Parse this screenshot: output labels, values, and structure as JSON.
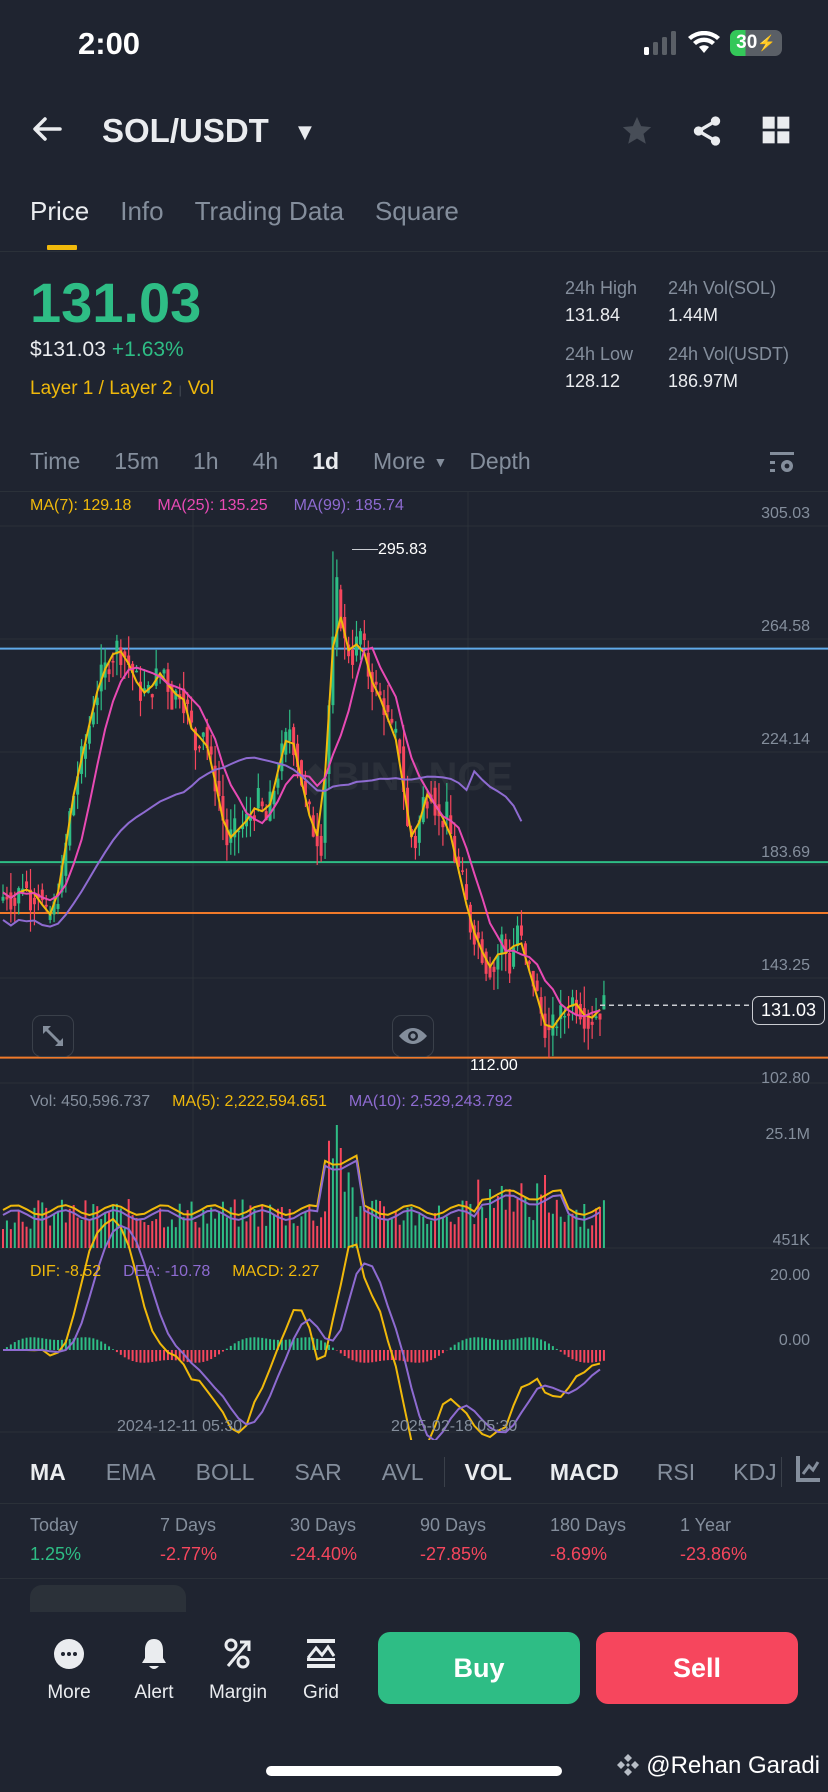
{
  "status_bar": {
    "time": "2:00",
    "battery": "30"
  },
  "header": {
    "pair": "SOL/USDT"
  },
  "tabs": [
    {
      "label": "Price",
      "active": true
    },
    {
      "label": "Info",
      "active": false
    },
    {
      "label": "Trading Data",
      "active": false
    },
    {
      "label": "Square",
      "active": false
    }
  ],
  "ticker": {
    "last_price": "131.03",
    "usd_price": "$131.03",
    "change_pct": "+1.63%",
    "tag1": "Layer 1 / Layer 2",
    "tag2": "Vol",
    "high_label": "24h High",
    "high_value": "131.84",
    "low_label": "24h Low",
    "low_value": "128.12",
    "vol_base_label": "24h Vol(SOL)",
    "vol_base_value": "1.44M",
    "vol_quote_label": "24h Vol(USDT)",
    "vol_quote_value": "186.97M"
  },
  "intervals": {
    "items": [
      "Time",
      "15m",
      "1h",
      "4h",
      "1d",
      "More",
      "Depth"
    ],
    "active": "1d"
  },
  "main_legend": {
    "ma7": "MA(7): 129.18",
    "ma25": "MA(25): 135.25",
    "ma99": "MA(99): 185.74"
  },
  "volume_legend": {
    "vol": "Vol: 450,596.737",
    "ma5": "MA(5): 2,222,594.651",
    "ma10": "MA(10): 2,529,243.792"
  },
  "macd_legend": {
    "dif": "DIF: -8.52",
    "dea": "DEA: -10.78",
    "macd": "MACD: 2.27"
  },
  "indicators": {
    "main": [
      "MA",
      "EMA",
      "BOLL",
      "SAR",
      "AVL"
    ],
    "sub": [
      "VOL",
      "MACD",
      "RSI",
      "KDJ"
    ],
    "active": [
      "MA",
      "VOL",
      "MACD"
    ]
  },
  "performance": [
    {
      "label": "Today",
      "value": "1.25%",
      "dir": "up"
    },
    {
      "label": "7 Days",
      "value": "-2.77%",
      "dir": "down"
    },
    {
      "label": "30 Days",
      "value": "-24.40%",
      "dir": "down"
    },
    {
      "label": "90 Days",
      "value": "-27.85%",
      "dir": "down"
    },
    {
      "label": "180 Days",
      "value": "-8.69%",
      "dir": "down"
    },
    {
      "label": "1 Year",
      "value": "-23.86%",
      "dir": "down"
    }
  ],
  "bottom_bar": {
    "items": [
      {
        "label": "More",
        "icon": "more-icon"
      },
      {
        "label": "Alert",
        "icon": "bell-icon"
      },
      {
        "label": "Margin",
        "icon": "percent-icon"
      },
      {
        "label": "Grid",
        "icon": "grid-bot-icon"
      }
    ],
    "buy": "Buy",
    "sell": "Sell"
  },
  "watermark": "@Rehan Garadi",
  "colors": {
    "bg": "#1f2430",
    "up": "#2ebd85",
    "down": "#f6465d",
    "accent": "#f0b90b",
    "ma7": "#f0b90b",
    "ma25": "#e84ab4",
    "ma99": "#8e6bd1",
    "line_blue": "#5fa8e8",
    "line_green": "#2ebd85",
    "line_orange": "#f07a2a"
  },
  "chart_data": {
    "type": "candlestick",
    "interval": "1d",
    "y_axis_ticks": [
      "305.03",
      "264.58",
      "224.14",
      "183.69",
      "143.25",
      "102.80"
    ],
    "high_marker": "295.83",
    "low_marker": "112.00",
    "current_price": "131.03",
    "x_axis_labels": [
      "2024-12-11 05:30",
      "2025-02-18 05:30"
    ],
    "horizontal_lines": [
      {
        "color": "blue",
        "price": 260.5
      },
      {
        "color": "green",
        "price": 183.0
      },
      {
        "color": "orange",
        "price": 164.5
      },
      {
        "color": "orange",
        "price": 112.0
      }
    ],
    "volume_axis": [
      "25.1M",
      "451K"
    ],
    "macd_axis": [
      "20.00",
      "0.00"
    ],
    "close_path": [
      172,
      168,
      176,
      170,
      173,
      162,
      166,
      178,
      200,
      215,
      226,
      240,
      250,
      256,
      261,
      258,
      252,
      245,
      244,
      250,
      253,
      242,
      246,
      238,
      225,
      232,
      218,
      207,
      190,
      194,
      196,
      200,
      205,
      198,
      210,
      222,
      232,
      220,
      205,
      195,
      190,
      240,
      282,
      262,
      258,
      266,
      252,
      245,
      240,
      230,
      225,
      195,
      190,
      205,
      210,
      198,
      200,
      185,
      175,
      160,
      155,
      146,
      144,
      155,
      145,
      160,
      147,
      140,
      128,
      120,
      126,
      128,
      133,
      130,
      125,
      128,
      131
    ]
  }
}
